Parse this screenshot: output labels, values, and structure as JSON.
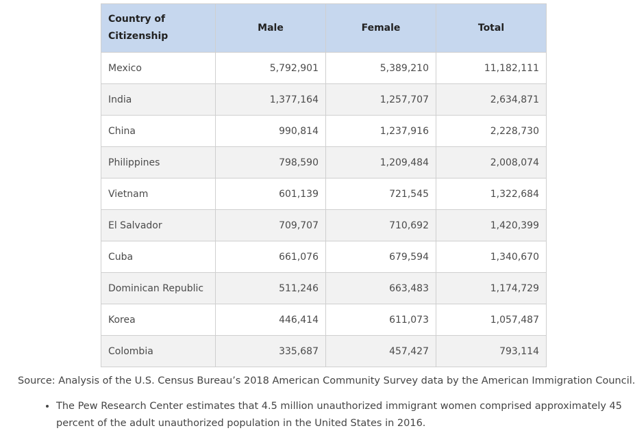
{
  "table": {
    "headers": [
      "Country of Citizenship",
      "Male",
      "Female",
      "Total"
    ],
    "header_first_lines": [
      "Country of",
      "Citizenship"
    ],
    "rows": [
      [
        "Mexico",
        "5,792,901",
        "5,389,210",
        "11,182,111"
      ],
      [
        "India",
        "1,377,164",
        "1,257,707",
        "2,634,871"
      ],
      [
        "China",
        "990,814",
        "1,237,916",
        "2,228,730"
      ],
      [
        "Philippines",
        "798,590",
        "1,209,484",
        "2,008,074"
      ],
      [
        "Vietnam",
        "601,139",
        "721,545",
        "1,322,684"
      ],
      [
        "El Salvador",
        "709,707",
        "710,692",
        "1,420,399"
      ],
      [
        "Cuba",
        "661,076",
        "679,594",
        "1,340,670"
      ],
      [
        "Dominican Republic",
        "511,246",
        "663,483",
        "1,174,729"
      ],
      [
        "Korea",
        "446,414",
        "611,073",
        "1,057,487"
      ],
      [
        "Colombia",
        "335,687",
        "457,427",
        "793,114"
      ]
    ]
  },
  "source": "Source: Analysis of the U.S. Census Bureau’s 2018 American Community Survey data by the American Immigration Council.",
  "notes": [
    "The Pew Research Center estimates that 4.5 million unauthorized immigrant women comprised approximately 45 percent of the adult unauthorized population in the United States in 2016."
  ],
  "colors": {
    "header_bg": "#c6d7ee",
    "row_alt_bg": "#f2f2f2",
    "border": "#cfcfcf"
  }
}
